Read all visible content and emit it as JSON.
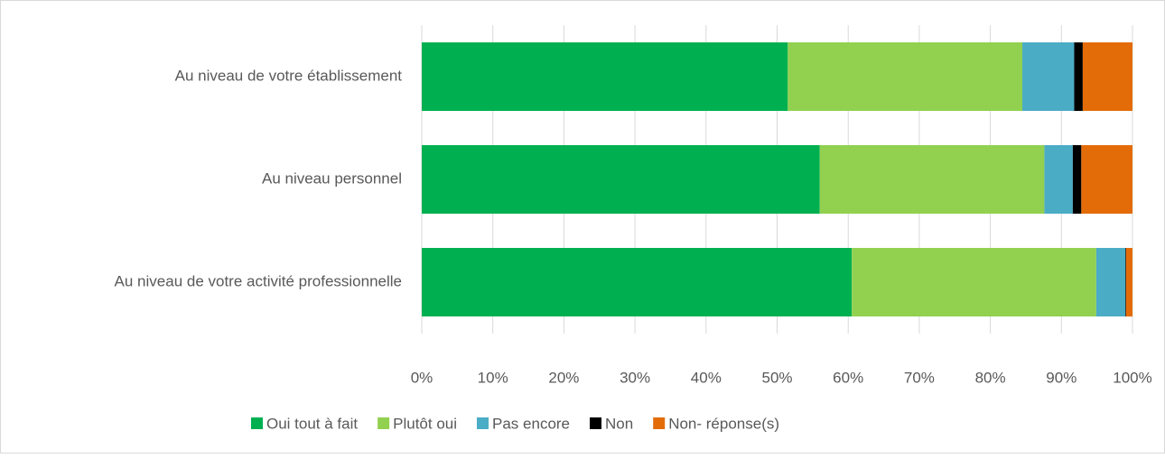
{
  "chart_data": {
    "type": "stacked_barh",
    "categories": [
      "Au niveau de votre établissement",
      "Au niveau personnel",
      "Au niveau de votre activité professionnelle"
    ],
    "series": [
      {
        "name": "Oui tout à fait",
        "color": "#00b050",
        "values": [
          51.5,
          56,
          60.5
        ]
      },
      {
        "name": "Plutôt oui",
        "color": "#92d050",
        "values": [
          33,
          31.6,
          34.4
        ]
      },
      {
        "name": "Pas encore",
        "color": "#4bacc6",
        "values": [
          7.3,
          4,
          4.1
        ]
      },
      {
        "name": "Non",
        "color": "#000000",
        "values": [
          1.2,
          1.2,
          0.1
        ]
      },
      {
        "name": "Non- réponse(s)",
        "color": "#e36c09",
        "values": [
          7,
          7.2,
          0.9
        ]
      }
    ],
    "xlim": [
      0,
      100
    ],
    "xticks": [
      {
        "value": 0,
        "label": "0%"
      },
      {
        "value": 10,
        "label": "10%"
      },
      {
        "value": 20,
        "label": "20%"
      },
      {
        "value": 30,
        "label": "30%"
      },
      {
        "value": 40,
        "label": "40%"
      },
      {
        "value": 50,
        "label": "50%"
      },
      {
        "value": 60,
        "label": "60%"
      },
      {
        "value": 70,
        "label": "70%"
      },
      {
        "value": 80,
        "label": "80%"
      },
      {
        "value": 90,
        "label": "90%"
      },
      {
        "value": 100,
        "label": "100%"
      }
    ],
    "grid": true,
    "legend": "bottom"
  }
}
